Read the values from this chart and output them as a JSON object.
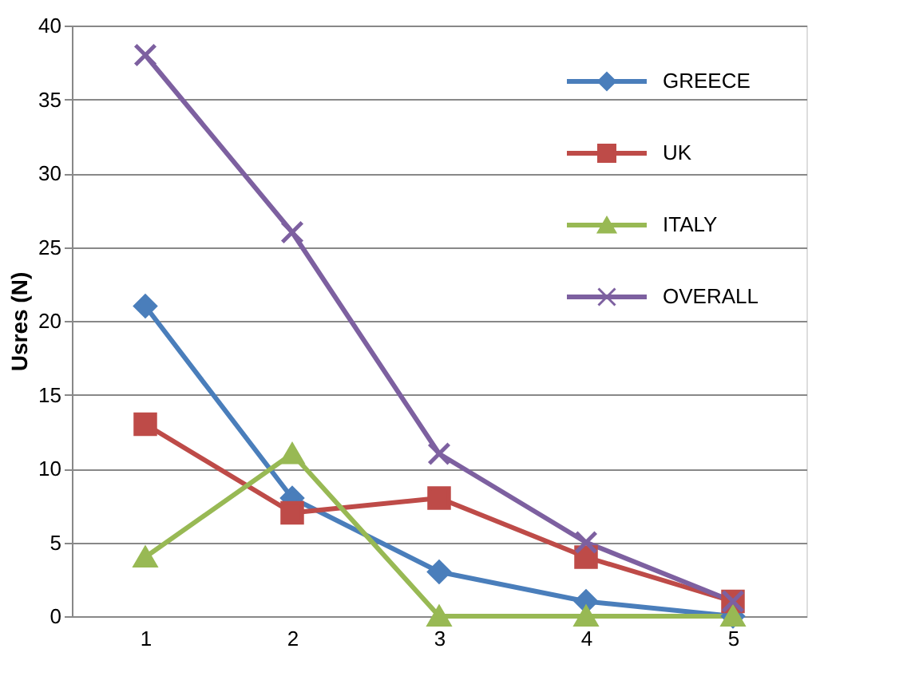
{
  "chart_data": {
    "type": "line",
    "ylabel": "Usres (N)",
    "categories": [
      "1",
      "2",
      "3",
      "4",
      "5"
    ],
    "series": [
      {
        "name": "GREECE",
        "color": "#4a7ebb",
        "marker": "diamond",
        "values": [
          21,
          8,
          3,
          1,
          0
        ]
      },
      {
        "name": "UK",
        "color": "#be4b48",
        "marker": "square",
        "values": [
          13,
          7,
          8,
          4,
          1
        ]
      },
      {
        "name": "ITALY",
        "color": "#98b954",
        "marker": "triangle",
        "values": [
          4,
          11,
          0,
          0,
          0
        ]
      },
      {
        "name": "OVERALL",
        "color": "#7d60a0",
        "marker": "cross",
        "values": [
          38,
          26,
          11,
          5,
          1
        ]
      }
    ],
    "ylim": [
      0,
      40
    ],
    "yticks": [
      0,
      5,
      10,
      15,
      20,
      25,
      30,
      35,
      40
    ],
    "grid": "y",
    "legend": "top right"
  }
}
